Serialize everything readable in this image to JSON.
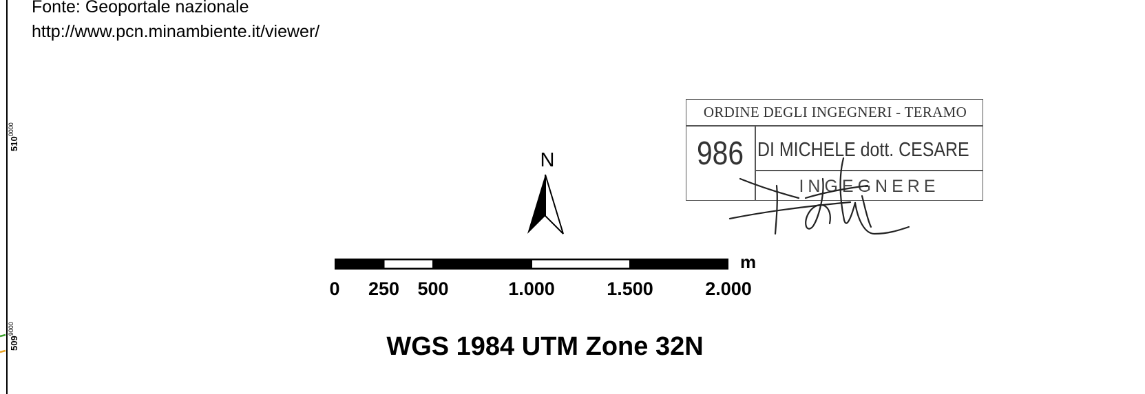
{
  "source": {
    "line1": "Fonte: Geoportale nazionale",
    "line2": "http://www.pcn.minambiente.it/viewer/"
  },
  "grid_coords": [
    {
      "major": "510",
      "minor": "0000"
    },
    {
      "major": "509",
      "minor": "9000"
    }
  ],
  "north_arrow": {
    "label": "N",
    "icon": "north-arrow-icon"
  },
  "scale_bar": {
    "unit": "m",
    "ticks": [
      "0",
      "250",
      "500",
      "1.000",
      "1.500",
      "2.000"
    ],
    "tick_values": [
      0,
      250,
      500,
      1000,
      1500,
      2000
    ]
  },
  "projection": "WGS 1984 UTM Zone 32N",
  "stamp": {
    "organization": "ORDINE DEGLI INGEGNERI - TERAMO",
    "number": "986",
    "name": "DI MICHELE dott. CESARE",
    "role": "INGEGNERE",
    "colors": {
      "ink": "#333333",
      "border": "#555555"
    }
  },
  "map_edge_colors": {
    "green": "#3aa02a",
    "orange": "#e8a020"
  }
}
